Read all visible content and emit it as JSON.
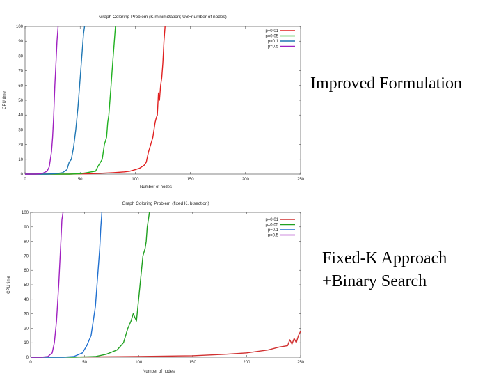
{
  "labels": {
    "top": "Improved Formulation",
    "bottom_line1": "Fixed-K Approach",
    "bottom_line2": "+Binary Search"
  },
  "chart_data": [
    {
      "type": "line",
      "title": "Graph Coloring Problem (K minimization; UB=number of nodes)",
      "xlabel": "Number of nodes",
      "ylabel": "CPU time",
      "xlim": [
        0,
        250
      ],
      "ylim": [
        0,
        100
      ],
      "xticks": [
        "0",
        "50",
        "100",
        "150",
        "200",
        "250"
      ],
      "yticks": [
        "0",
        "10",
        "20",
        "30",
        "40",
        "50",
        "60",
        "70",
        "80",
        "90",
        "100"
      ],
      "grid": false,
      "legend_position": "top-right",
      "series": [
        {
          "name": "p=0.01",
          "color": "#e02020",
          "x": [
            0,
            20,
            40,
            60,
            80,
            90,
            95,
            100,
            104,
            108,
            110,
            112,
            114,
            116,
            118,
            119,
            120,
            121,
            122,
            123,
            124,
            125,
            126,
            127
          ],
          "y": [
            0,
            0,
            0,
            0.3,
            1,
            1.5,
            2,
            3,
            4,
            6,
            8,
            15,
            20,
            25,
            35,
            38,
            40,
            55,
            50,
            60,
            65,
            75,
            90,
            100
          ]
        },
        {
          "name": "p=0.05",
          "color": "#20b020",
          "x": [
            0,
            20,
            40,
            50,
            56,
            60,
            64,
            66,
            70,
            72,
            74,
            75,
            76,
            77,
            78,
            79,
            80,
            81,
            82
          ],
          "y": [
            0,
            0,
            0,
            0.3,
            1,
            1.5,
            2,
            5,
            10,
            20,
            25,
            35,
            40,
            50,
            60,
            70,
            80,
            90,
            100
          ]
        },
        {
          "name": "p=0.1",
          "color": "#1f77b4",
          "x": [
            0,
            20,
            30,
            34,
            38,
            40,
            42,
            44,
            46,
            48,
            49,
            50,
            51,
            52,
            53,
            54
          ],
          "y": [
            0,
            0,
            0.5,
            1,
            3,
            8,
            10,
            18,
            30,
            45,
            55,
            65,
            75,
            85,
            95,
            100
          ]
        },
        {
          "name": "p=0.5",
          "color": "#a020c0",
          "x": [
            0,
            10,
            16,
            20,
            22,
            24,
            25,
            26,
            27,
            28,
            29,
            30
          ],
          "y": [
            0,
            0,
            0.5,
            2,
            5,
            15,
            25,
            40,
            60,
            75,
            90,
            100
          ]
        }
      ]
    },
    {
      "type": "line",
      "title": "Graph Coloring Problem (fixed K, bisection)",
      "xlabel": "Number of nodes",
      "ylabel": "CPU time",
      "xlim": [
        0,
        250
      ],
      "ylim": [
        0,
        100
      ],
      "xticks": [
        "0",
        "50",
        "100",
        "150",
        "200",
        "250"
      ],
      "yticks": [
        "0",
        "10",
        "20",
        "30",
        "40",
        "50",
        "60",
        "70",
        "80",
        "90",
        "100"
      ],
      "grid": false,
      "legend_position": "top-right",
      "series": [
        {
          "name": "p=0.01",
          "color": "#d03030",
          "x": [
            0,
            50,
            100,
            150,
            180,
            200,
            220,
            230,
            238,
            240,
            242,
            244,
            246,
            248,
            250
          ],
          "y": [
            0,
            0.2,
            0.5,
            1,
            2,
            3,
            5,
            7,
            8,
            12,
            9,
            13,
            10,
            15,
            18
          ]
        },
        {
          "name": "p=0.05",
          "color": "#20a020",
          "x": [
            0,
            40,
            60,
            70,
            80,
            86,
            90,
            93,
            95,
            98,
            100,
            102,
            104,
            106,
            107,
            108,
            109,
            110
          ],
          "y": [
            0,
            0,
            0.5,
            2,
            5,
            10,
            20,
            25,
            30,
            25,
            40,
            55,
            70,
            75,
            80,
            90,
            95,
            100
          ]
        },
        {
          "name": "p=0.1",
          "color": "#2070d0",
          "x": [
            0,
            30,
            40,
            48,
            52,
            56,
            58,
            60,
            62,
            64,
            65,
            66
          ],
          "y": [
            0,
            0,
            0.5,
            3,
            8,
            15,
            25,
            35,
            55,
            75,
            90,
            100
          ]
        },
        {
          "name": "p=0.5",
          "color": "#a020c0",
          "x": [
            0,
            10,
            16,
            20,
            22,
            24,
            26,
            28,
            29,
            30
          ],
          "y": [
            0,
            0,
            0.5,
            3,
            10,
            25,
            50,
            80,
            95,
            100
          ]
        }
      ]
    }
  ]
}
